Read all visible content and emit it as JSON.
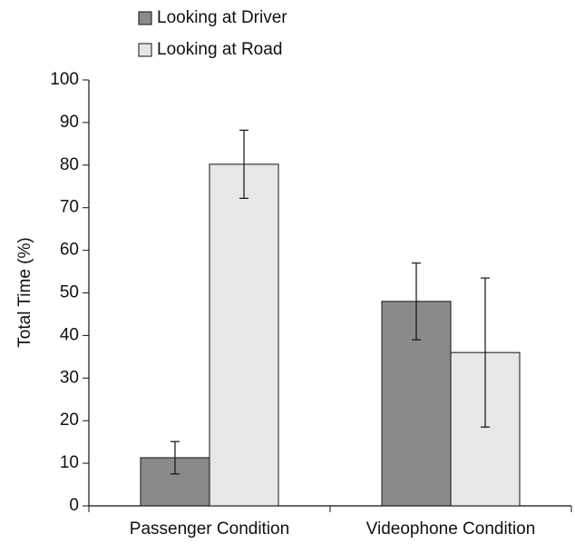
{
  "chart_data": {
    "type": "bar",
    "categories": [
      "Passenger Condition",
      "Videophone Condition"
    ],
    "series": [
      {
        "name": "Looking at Driver",
        "color": "#8a8a8c",
        "values": [
          11.3,
          48
        ],
        "errors": [
          3.8,
          9
        ]
      },
      {
        "name": "Looking at Road",
        "color": "#e6e7e8",
        "values": [
          80.2,
          36
        ],
        "errors": [
          8,
          17.5
        ]
      }
    ],
    "ylabel": "Total Time (%)",
    "ylim": [
      0,
      100
    ],
    "yticks": [
      0,
      10,
      20,
      30,
      40,
      50,
      60,
      70,
      80,
      90,
      100
    ],
    "grid": false,
    "legend": "top"
  }
}
